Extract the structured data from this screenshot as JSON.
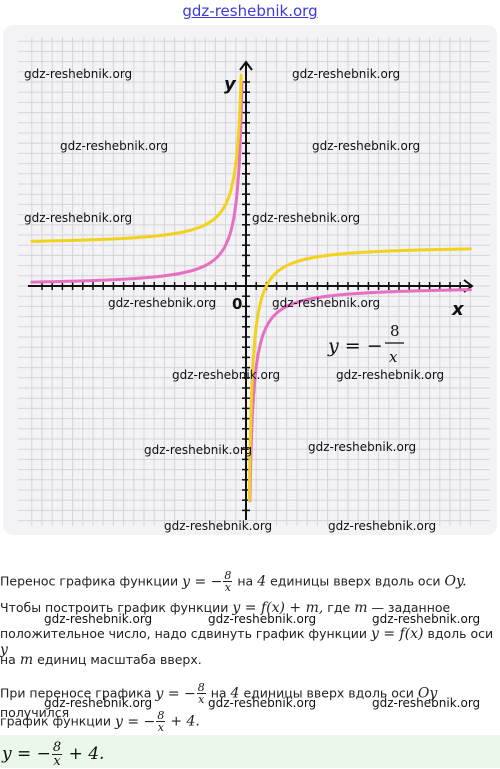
{
  "site": {
    "title": "gdz-reshebnik.org"
  },
  "graph": {
    "x_axis_label": "x",
    "y_axis_label": "y",
    "origin_label": "0",
    "formula_label": "y = −8/x",
    "watermark": "gdz-reshebnik.org"
  },
  "chart_data": {
    "type": "line",
    "xlabel": "x",
    "ylabel": "y",
    "xlim": [
      -21,
      22
    ],
    "ylim": [
      -21,
      21
    ],
    "grid": true,
    "series": [
      {
        "name": "y = −8/x",
        "color": "#e86fc0",
        "formula": "-8/x"
      },
      {
        "name": "y = −8/x + 4",
        "color": "#f2d21c",
        "formula": "-8/x + 4"
      }
    ]
  },
  "text": {
    "line1": {
      "a": "Перенос графика функции",
      "b": "на",
      "c": "4",
      "d": "единицы вверх вдоль оси",
      "e": "Oy."
    },
    "line2": {
      "a": "Чтобы построить график функции",
      "b": "y = f(x) + m,",
      "c": "где",
      "d": "m",
      "e": "— заданное"
    },
    "line3": {
      "a": "положительное число, надо сдвинуть график функции",
      "b": "y = f(x)",
      "c": "вдоль оси",
      "d": "y"
    },
    "line4": {
      "a": "на",
      "b": "m",
      "c": "единиц масштаба вверх."
    },
    "line5": {
      "a": "При переносе графика",
      "b": "на",
      "c": "4",
      "d": "единицы вверх вдоль оси",
      "e": "Oy",
      "f": "получился"
    },
    "line6": {
      "a": "график функции",
      "b": "+ 4."
    },
    "frac": {
      "num": "8",
      "den": "x",
      "prefix": "y = −"
    },
    "answer": {
      "prefix": "y = −",
      "num": "8",
      "den": "x",
      "suffix": "+ 4."
    }
  }
}
